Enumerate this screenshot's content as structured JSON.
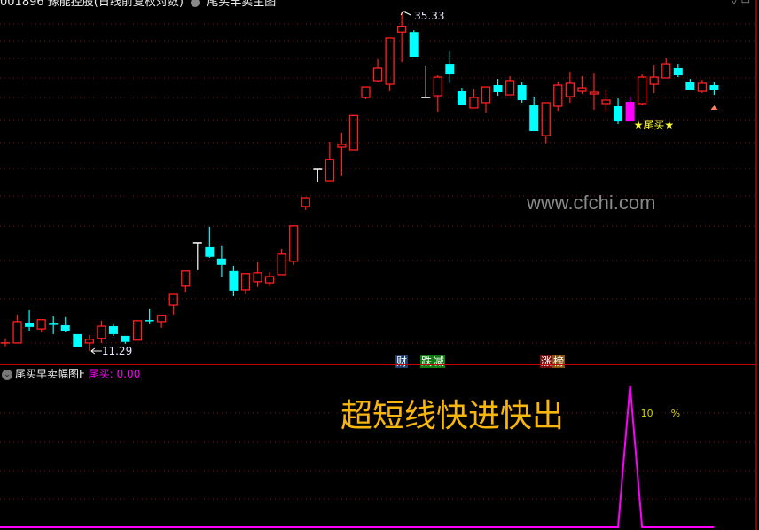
{
  "header": {
    "stock_title": "001896 豫能控股(日线前复权对数)",
    "indicator_title": "尾买早卖主图",
    "window_controls": "▽ ▭"
  },
  "main_chart": {
    "high_label": "35.33",
    "low_label": "11.29",
    "signal_label": "★尾买★",
    "watermark": "www.cfchi.com",
    "badges": [
      {
        "text": "财",
        "color": "#1c3f6e"
      },
      {
        "text": "跌",
        "color": "#137a13"
      },
      {
        "text": "减",
        "color": "#137a13"
      },
      {
        "text": "涨",
        "color": "#7a0c0c"
      },
      {
        "text": "榜",
        "color": "#8a5410"
      }
    ],
    "colors": {
      "up": "#ff2020",
      "down": "#00ffff",
      "flat": "#ffffff",
      "signal": "#ff00ff",
      "grid": "#7a1a1a",
      "marker": "#ff7f50"
    }
  },
  "chart_data": {
    "type": "candlestick",
    "scale": "log",
    "ylim": [
      11.29,
      35.33
    ],
    "signal_index": 52,
    "candles_ohlc": [
      [
        11.6,
        11.78,
        11.47,
        11.6
      ],
      [
        11.6,
        12.76,
        11.6,
        12.46
      ],
      [
        12.42,
        12.95,
        12.09,
        12.24
      ],
      [
        12.16,
        12.57,
        12.02,
        12.54
      ],
      [
        12.35,
        12.69,
        11.95,
        12.35
      ],
      [
        12.31,
        12.65,
        12.02,
        12.06
      ],
      [
        11.95,
        11.95,
        11.43,
        11.43
      ],
      [
        11.6,
        11.91,
        11.29,
        11.74
      ],
      [
        11.78,
        12.5,
        11.6,
        12.27
      ],
      [
        12.27,
        12.35,
        11.88,
        11.95
      ],
      [
        11.88,
        11.88,
        11.57,
        11.64
      ],
      [
        11.71,
        12.5,
        11.71,
        12.5
      ],
      [
        12.5,
        12.99,
        12.35,
        12.5
      ],
      [
        12.46,
        12.73,
        12.2,
        12.73
      ],
      [
        13.18,
        13.66,
        12.76,
        13.66
      ],
      [
        14.04,
        14.77,
        13.74,
        14.77
      ],
      [
        16.24,
        16.24,
        14.81,
        16.24
      ],
      [
        16.0,
        17.14,
        15.44,
        15.49
      ],
      [
        15.4,
        16.1,
        14.5,
        15.08
      ],
      [
        14.77,
        15.03,
        13.58,
        13.83
      ],
      [
        13.87,
        14.64,
        13.66,
        14.64
      ],
      [
        14.25,
        15.21,
        14.0,
        14.68
      ],
      [
        14.2,
        14.72,
        14.04,
        14.5
      ],
      [
        14.59,
        15.91,
        14.59,
        15.63
      ],
      [
        15.26,
        17.19,
        15.08,
        17.19
      ],
      [
        18.35,
        18.9,
        18.14,
        18.9
      ],
      [
        20.79,
        20.79,
        19.94,
        20.79
      ],
      [
        20.0,
        22.8,
        20.0,
        21.5
      ],
      [
        22.4,
        23.49,
        20.3,
        22.6
      ],
      [
        22.2,
        24.91,
        22.2,
        24.91
      ],
      [
        26.46,
        27.42,
        26.31,
        27.42
      ],
      [
        28.0,
        30.08,
        27.84,
        29.2
      ],
      [
        27.67,
        32.31,
        27.02,
        32.31
      ],
      [
        32.97,
        35.33,
        29.8,
        33.62
      ],
      [
        32.97,
        33.17,
        30.35,
        30.35
      ],
      [
        26.46,
        29.46,
        26.46,
        26.46
      ],
      [
        26.62,
        28.51,
        25.23,
        28.34
      ],
      [
        29.63,
        31.0,
        27.76,
        28.59
      ],
      [
        27.02,
        27.34,
        25.77,
        25.77
      ],
      [
        25.54,
        27.26,
        25.54,
        26.46
      ],
      [
        26.0,
        27.42,
        25.15,
        27.42
      ],
      [
        27.59,
        28.17,
        26.62,
        26.94
      ],
      [
        26.7,
        28.42,
        26.7,
        28.01
      ],
      [
        27.59,
        27.84,
        26.0,
        26.23
      ],
      [
        25.77,
        26.54,
        23.63,
        23.63
      ],
      [
        23.28,
        26.0,
        22.67,
        26.0
      ],
      [
        25.69,
        27.92,
        25.31,
        27.59
      ],
      [
        26.54,
        28.85,
        26.0,
        27.76
      ],
      [
        27.02,
        28.42,
        26.78,
        27.34
      ],
      [
        26.78,
        28.76,
        25.38,
        26.94
      ],
      [
        25.92,
        27.18,
        25.23,
        26.23
      ],
      [
        25.69,
        26.38,
        24.2,
        24.41
      ],
      [
        24.41,
        26.54,
        24.41,
        26.07
      ],
      [
        25.92,
        28.59,
        25.77,
        28.34
      ],
      [
        27.67,
        29.55,
        26.86,
        28.34
      ],
      [
        28.26,
        30.17,
        28.26,
        29.63
      ],
      [
        29.2,
        29.63,
        28.34,
        28.51
      ],
      [
        27.92,
        28.17,
        27.18,
        27.18
      ],
      [
        27.02,
        28.09,
        26.86,
        27.76
      ],
      [
        27.59,
        27.84,
        26.7,
        27.18
      ]
    ],
    "candle_kinds": [
      "up",
      "up",
      "down",
      "up",
      "down",
      "down",
      "down",
      "up",
      "up",
      "down",
      "down",
      "up",
      "down",
      "up",
      "up",
      "up",
      "flat",
      "down",
      "down",
      "down",
      "up",
      "up",
      "up",
      "up",
      "up",
      "up",
      "flat",
      "up",
      "up",
      "up",
      "up",
      "up",
      "up",
      "up",
      "down",
      "flat",
      "up",
      "down",
      "down",
      "up",
      "up",
      "down",
      "up",
      "down",
      "down",
      "up",
      "up",
      "up",
      "up",
      "up",
      "up",
      "down",
      "signal",
      "up",
      "up",
      "up",
      "down",
      "down",
      "up",
      "down"
    ],
    "indicator": {
      "name": "尾买早卖幅图F",
      "series_label": "尾买:",
      "current_value": "0.00",
      "peak_label": "10",
      "unit_label": "%",
      "ylim": [
        0,
        10
      ],
      "values": [
        0,
        0,
        0,
        0,
        0,
        0,
        0,
        0,
        0,
        0,
        0,
        0,
        0,
        0,
        0,
        0,
        0,
        0,
        0,
        0,
        0,
        0,
        0,
        0,
        0,
        0,
        0,
        0,
        0,
        0,
        0,
        0,
        0,
        0,
        0,
        0,
        0,
        0,
        0,
        0,
        0,
        0,
        0,
        0,
        0,
        0,
        0,
        0,
        0,
        0,
        0,
        0,
        10,
        0,
        0,
        0,
        0,
        0,
        0,
        0
      ],
      "line_color": "#ff00ff",
      "label_color": "#d4d400"
    },
    "slogan": "超短线快进快出"
  }
}
